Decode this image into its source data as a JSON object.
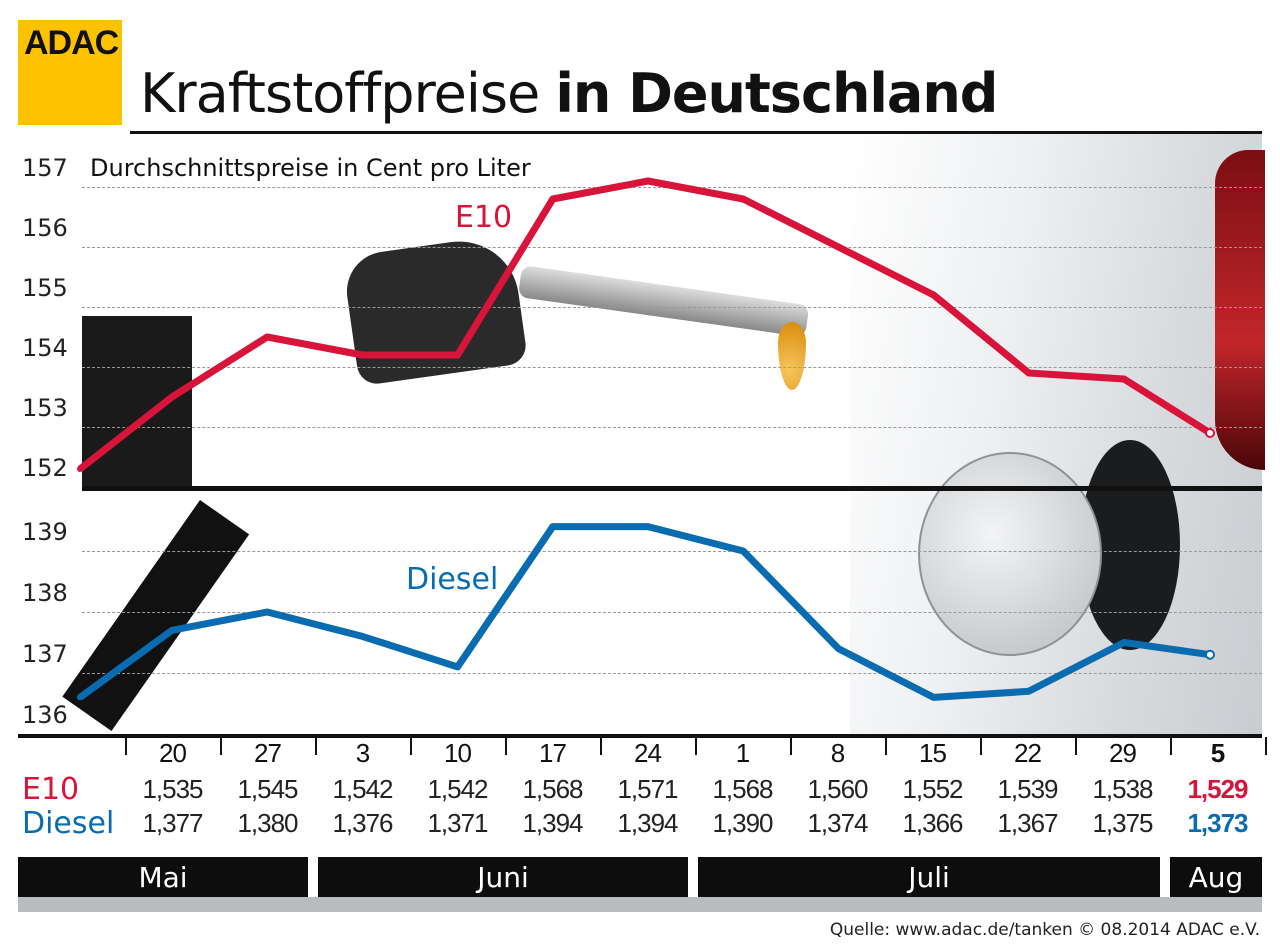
{
  "logo": "ADAC",
  "title": {
    "light": "Kraftstoffpreise ",
    "bold": "in Deutschland"
  },
  "colors": {
    "e10": "#d8143a",
    "diesel": "#0a6cb0",
    "logo": "#fdc300"
  },
  "chart_data": {
    "type": "line",
    "subtitle": "Durchschnittspreise in Cent pro Liter",
    "upper_axis": {
      "ticks": [
        "157",
        "156",
        "155",
        "154",
        "153",
        "152"
      ],
      "ylim": [
        152,
        157
      ]
    },
    "lower_axis": {
      "ticks": [
        "139",
        "138",
        "137",
        "136"
      ],
      "ylim": [
        136,
        139
      ]
    },
    "grid": true,
    "categories": [
      "20",
      "27",
      "3",
      "10",
      "17",
      "24",
      "1",
      "8",
      "15",
      "22",
      "29",
      "5"
    ],
    "months": [
      "Mai",
      "Juni",
      "Juli",
      "Aug"
    ],
    "series": [
      {
        "name": "E10",
        "start": 152.3,
        "values": [
          153.5,
          154.5,
          154.2,
          154.2,
          156.8,
          157.1,
          156.8,
          156.0,
          155.2,
          153.9,
          153.8,
          152.9
        ],
        "labels": [
          "1,535",
          "1,545",
          "1,542",
          "1,542",
          "1,568",
          "1,571",
          "1,568",
          "1,560",
          "1,552",
          "1,539",
          "1,538",
          "1,529"
        ]
      },
      {
        "name": "Diesel",
        "start": 136.6,
        "values": [
          137.7,
          138.0,
          137.6,
          137.1,
          139.4,
          139.4,
          139.0,
          137.4,
          136.6,
          136.7,
          137.5,
          137.3
        ],
        "labels": [
          "1,377",
          "1,380",
          "1,376",
          "1,371",
          "1,394",
          "1,394",
          "1,390",
          "1,374",
          "1,366",
          "1,367",
          "1,375",
          "1,373"
        ]
      }
    ]
  },
  "footer": "Quelle: www.adac.de/tanken   © 08.2014  ADAC e.V."
}
